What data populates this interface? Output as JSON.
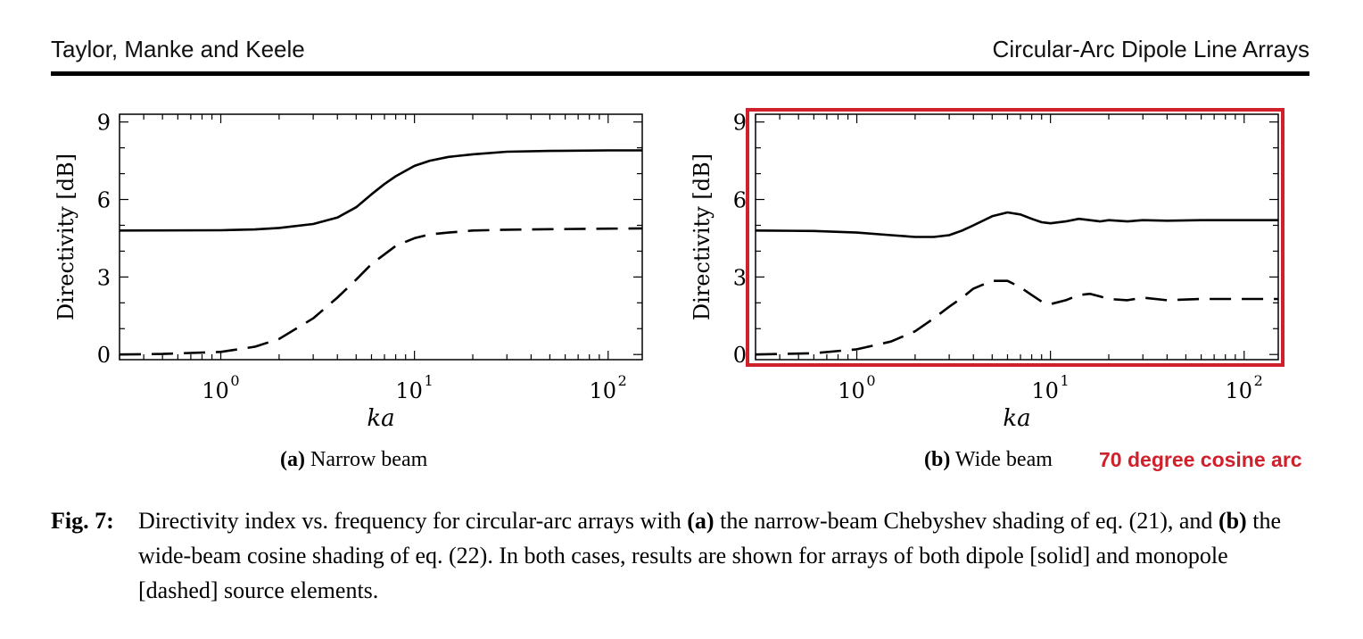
{
  "header": {
    "left": "Taylor, Manke and Keele",
    "right": "Circular-Arc Dipole Line Arrays"
  },
  "chart_data": [
    {
      "type": "line",
      "subcaption_label": "(a)",
      "subcaption_text": "Narrow beam",
      "xlabel": "ka",
      "ylabel": "Directivity [dB]",
      "xscale": "log",
      "xlim": [
        0.3,
        150
      ],
      "ylim": [
        -0.2,
        9.3
      ],
      "yticks": [
        0,
        3,
        6,
        9
      ],
      "xticks": [
        1,
        10,
        100
      ],
      "xtick_labels": [
        {
          "base": "10",
          "exp": "0"
        },
        {
          "base": "10",
          "exp": "1"
        },
        {
          "base": "10",
          "exp": "2"
        }
      ],
      "series": [
        {
          "style": "solid",
          "x": [
            0.3,
            1.0,
            1.5,
            2.0,
            3.0,
            4.0,
            5.0,
            6.0,
            7.0,
            8.0,
            10.0,
            12.0,
            15.0,
            20.0,
            30.0,
            50.0,
            100.0,
            150.0
          ],
          "y": [
            4.8,
            4.81,
            4.84,
            4.9,
            5.05,
            5.3,
            5.7,
            6.2,
            6.6,
            6.9,
            7.3,
            7.5,
            7.65,
            7.75,
            7.85,
            7.88,
            7.9,
            7.9
          ]
        },
        {
          "style": "dashed",
          "x": [
            0.3,
            0.5,
            1.0,
            1.5,
            2.0,
            3.0,
            4.0,
            5.0,
            6.0,
            8.0,
            10.0,
            12.0,
            15.0,
            20.0,
            30.0,
            50.0,
            100.0,
            150.0
          ],
          "y": [
            0.0,
            0.02,
            0.1,
            0.3,
            0.6,
            1.4,
            2.2,
            2.9,
            3.5,
            4.2,
            4.5,
            4.65,
            4.72,
            4.8,
            4.83,
            4.85,
            4.87,
            4.88
          ]
        }
      ]
    },
    {
      "type": "line",
      "subcaption_label": "(b)",
      "subcaption_text": "Wide beam",
      "xlabel": "ka",
      "ylabel": "Directivity [dB]",
      "xscale": "log",
      "xlim": [
        0.3,
        150
      ],
      "ylim": [
        -0.2,
        9.3
      ],
      "yticks": [
        0,
        3,
        6,
        9
      ],
      "xticks": [
        1,
        10,
        100
      ],
      "xtick_labels": [
        {
          "base": "10",
          "exp": "0"
        },
        {
          "base": "10",
          "exp": "1"
        },
        {
          "base": "10",
          "exp": "2"
        }
      ],
      "highlight_box": true,
      "series": [
        {
          "style": "solid",
          "x": [
            0.3,
            0.6,
            1.0,
            1.5,
            2.0,
            2.5,
            3.0,
            3.5,
            4.0,
            5.0,
            6.0,
            7.0,
            8.0,
            9.0,
            10.0,
            12.0,
            14.0,
            16.0,
            18.0,
            20.0,
            25.0,
            30.0,
            40.0,
            60.0,
            100.0,
            150.0
          ],
          "y": [
            4.8,
            4.78,
            4.72,
            4.62,
            4.55,
            4.55,
            4.62,
            4.8,
            5.0,
            5.35,
            5.5,
            5.42,
            5.25,
            5.12,
            5.08,
            5.15,
            5.25,
            5.2,
            5.15,
            5.2,
            5.15,
            5.2,
            5.18,
            5.2,
            5.2,
            5.2
          ]
        },
        {
          "style": "dashed",
          "x": [
            0.3,
            0.6,
            1.0,
            1.5,
            2.0,
            2.5,
            3.0,
            3.5,
            4.0,
            5.0,
            6.0,
            7.0,
            8.0,
            9.0,
            10.0,
            12.0,
            14.0,
            16.0,
            18.0,
            20.0,
            25.0,
            30.0,
            40.0,
            60.0,
            100.0,
            150.0
          ],
          "y": [
            0.0,
            0.05,
            0.2,
            0.5,
            0.9,
            1.4,
            1.85,
            2.2,
            2.55,
            2.85,
            2.85,
            2.6,
            2.3,
            2.05,
            1.95,
            2.1,
            2.3,
            2.35,
            2.25,
            2.15,
            2.1,
            2.2,
            2.1,
            2.15,
            2.15,
            2.15
          ]
        }
      ]
    }
  ],
  "annotation": "70 degree cosine arc",
  "annotation_color": "#d0202c",
  "figure_caption": {
    "label": "Fig. 7:",
    "text": "Directivity index vs. frequency for circular-arc arrays with (a) the narrow-beam Chebyshev shading of eq. (21), and (b) the wide-beam cosine shading of eq. (22). In both cases, results are shown for arrays of both dipole [solid] and monopole [dashed] source elements.",
    "parts": [
      {
        "t": "Directivity index vs. frequency for circular-arc arrays with ",
        "b": false
      },
      {
        "t": "(a)",
        "b": true
      },
      {
        "t": " the narrow-beam Chebyshev shading of eq. (21), and ",
        "b": false
      },
      {
        "t": "(b)",
        "b": true
      },
      {
        "t": " the wide-beam cosine shading of eq. (22). In both cases, results are shown for arrays of both dipole [solid] and monopole [dashed] source elements.",
        "b": false
      }
    ]
  }
}
